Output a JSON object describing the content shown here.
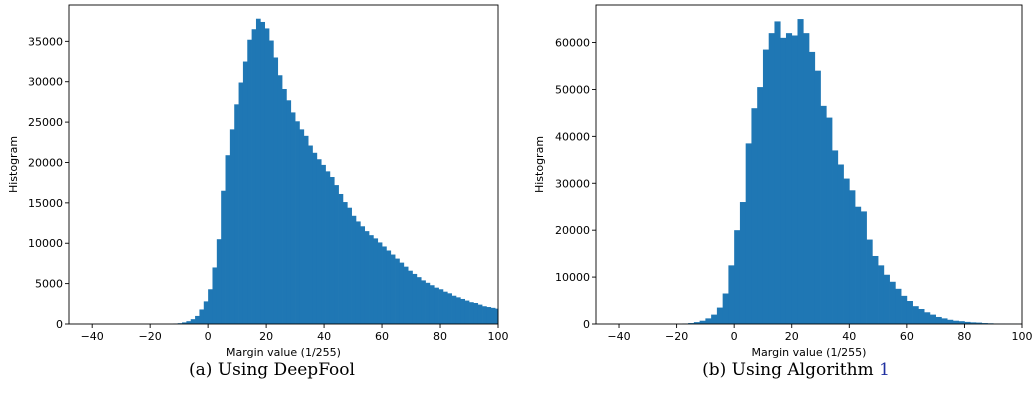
{
  "bar_color": "#1f77b4",
  "ref_color": "#1f2fa0",
  "captions": [
    {
      "text": "(a) Using DeepFool"
    },
    {
      "text": "(b) Using Algorithm ",
      "ref": "1"
    }
  ],
  "chart_data": [
    {
      "type": "bar",
      "subtype": "histogram",
      "xlabel": "Margin value (1/255)",
      "ylabel": "Histogram",
      "xlim": [
        -48,
        100
      ],
      "ylim": [
        0,
        39500
      ],
      "xticks": [
        -40,
        -20,
        0,
        20,
        40,
        60,
        80,
        100
      ],
      "yticks": [
        0,
        5000,
        10000,
        15000,
        20000,
        25000,
        30000,
        35000
      ],
      "bin_start": -48,
      "bin_width": 1.5,
      "values": [
        0,
        0,
        0,
        0,
        0,
        0,
        0,
        0,
        0,
        0,
        0,
        0,
        0,
        0,
        0,
        0,
        0,
        0,
        0,
        0,
        0,
        0,
        0,
        0,
        50,
        100,
        200,
        350,
        600,
        1000,
        1800,
        2800,
        4300,
        7000,
        10500,
        16500,
        20900,
        24100,
        27200,
        29900,
        32500,
        35200,
        36500,
        37800,
        37400,
        36600,
        35100,
        33000,
        30800,
        29100,
        27700,
        26200,
        25100,
        24100,
        23300,
        22100,
        21200,
        20400,
        19700,
        18900,
        18200,
        17200,
        16100,
        15100,
        14400,
        13400,
        12700,
        12100,
        11500,
        11000,
        10600,
        10100,
        9600,
        9100,
        8600,
        8100,
        7600,
        7100,
        6600,
        6200,
        5800,
        5400,
        5100,
        4800,
        4500,
        4300,
        4000,
        3800,
        3500,
        3300,
        3100,
        2900,
        2700,
        2600,
        2400,
        2200,
        2100,
        2000,
        1900,
        1700,
        1600,
        1500,
        1400,
        1300,
        1200,
        1100,
        1050,
        1000,
        950,
        900,
        850,
        800,
        750,
        700,
        650,
        600,
        550,
        500
      ]
    },
    {
      "type": "bar",
      "subtype": "histogram",
      "xlabel": "Margin value (1/255)",
      "ylabel": "Histogram",
      "xlim": [
        -48,
        100
      ],
      "ylim": [
        0,
        68000
      ],
      "xticks": [
        -40,
        -20,
        0,
        20,
        40,
        60,
        80,
        100
      ],
      "yticks": [
        0,
        10000,
        20000,
        30000,
        40000,
        50000,
        60000
      ],
      "bin_start": -48,
      "bin_width": 2,
      "values": [
        0,
        0,
        0,
        0,
        0,
        0,
        0,
        0,
        0,
        0,
        0,
        0,
        0,
        0,
        0,
        100,
        200,
        400,
        700,
        1200,
        2000,
        3500,
        6500,
        12500,
        20000,
        26000,
        38500,
        46000,
        50500,
        58500,
        62000,
        64500,
        61000,
        62000,
        61500,
        65000,
        62000,
        58000,
        54000,
        46500,
        44000,
        37000,
        34000,
        31000,
        28500,
        25000,
        24000,
        18000,
        14500,
        12500,
        10500,
        9000,
        7500,
        6000,
        4900,
        3800,
        3200,
        2500,
        2000,
        1500,
        1200,
        900,
        700,
        600,
        450,
        350,
        300,
        200,
        150,
        100,
        80,
        60,
        50,
        40
      ]
    }
  ]
}
